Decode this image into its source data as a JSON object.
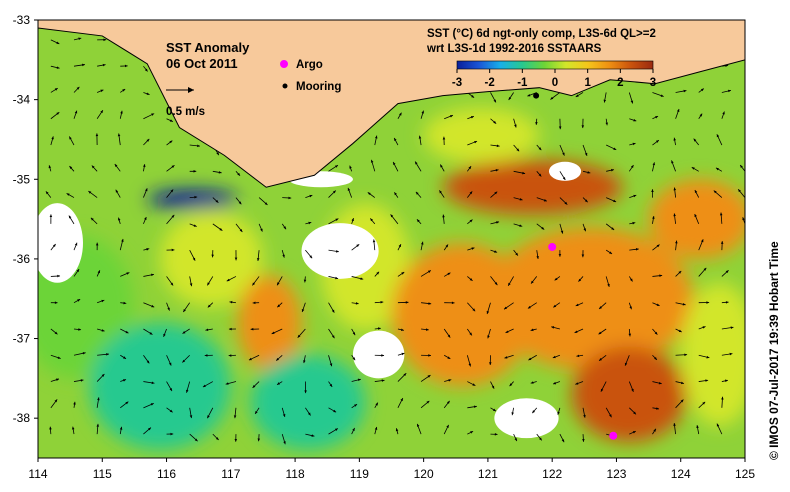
{
  "chart_data": {
    "type": "map",
    "title": "SST Anomaly",
    "date": "06 Oct 2011",
    "subtitle_line1": "SST (°C) 6d ngt-only comp, L3S-6d QL>=2",
    "subtitle_line2": "wrt L3S-1d 1992-2016 SSTAARS",
    "colorbar": {
      "min": -3,
      "max": 3,
      "ticks": [
        "-3",
        "-2",
        "-1",
        "0",
        "1",
        "2",
        "3"
      ],
      "colors": [
        "#0a1f9a",
        "#1a55d6",
        "#19b0e8",
        "#27c98f",
        "#6cd437",
        "#d2e62a",
        "#f5c61b",
        "#ee8f12",
        "#c9520d",
        "#9a2a10"
      ]
    },
    "xaxis": {
      "min": 114,
      "max": 125,
      "ticks": [
        "114",
        "115",
        "116",
        "117",
        "118",
        "119",
        "120",
        "121",
        "122",
        "123",
        "124",
        "125"
      ]
    },
    "yaxis": {
      "min": -38.5,
      "max": -33,
      "ticks": [
        "-33",
        "-34",
        "-35",
        "-36",
        "-37",
        "-38"
      ]
    },
    "markers": [
      {
        "label": "Argo",
        "lon": 122.0,
        "lat": -35.85,
        "color": "#ff00ff"
      },
      {
        "label": "Argo",
        "lon": 122.95,
        "lat": -38.22,
        "color": "#ff00ff"
      },
      {
        "label": "Mooring",
        "lon": 121.75,
        "lat": -33.95,
        "color": "#000000"
      }
    ],
    "legend": {
      "argo": "Argo",
      "mooring": "Mooring",
      "vector_scale": "0.5 m/s"
    },
    "credit": "© IMOS 07-Jul-2017 19:39 Hobart Time",
    "land_color": "#f7c99b",
    "coast": [
      [
        114,
        -33
      ],
      [
        114,
        -33.1
      ],
      [
        115,
        -33.2
      ],
      [
        115.7,
        -33.55
      ],
      [
        116.2,
        -34.35
      ],
      [
        116.9,
        -34.7
      ],
      [
        117.55,
        -35.1
      ],
      [
        118.3,
        -34.95
      ],
      [
        118.9,
        -34.55
      ],
      [
        119.6,
        -34.05
      ],
      [
        120.3,
        -33.95
      ],
      [
        121.0,
        -33.9
      ],
      [
        121.8,
        -33.85
      ],
      [
        122.3,
        -33.95
      ],
      [
        122.9,
        -33.75
      ],
      [
        123.6,
        -33.8
      ],
      [
        124.3,
        -33.65
      ],
      [
        125,
        -33.5
      ],
      [
        125,
        -33
      ]
    ],
    "anomaly_blobs": [
      {
        "lon": 114.6,
        "lat": -36.6,
        "rlon": 0.9,
        "rlat": 0.9,
        "value": -0.4
      },
      {
        "lon": 115.9,
        "lat": -37.6,
        "rlon": 1.1,
        "rlat": 0.8,
        "value": -0.8
      },
      {
        "lon": 116.7,
        "lat": -36.0,
        "rlon": 0.8,
        "rlat": 0.6,
        "value": 0.3
      },
      {
        "lon": 117.6,
        "lat": -36.8,
        "rlon": 0.5,
        "rlat": 0.6,
        "value": 1.6
      },
      {
        "lon": 118.2,
        "lat": -37.8,
        "rlon": 0.9,
        "rlat": 0.6,
        "value": -0.6
      },
      {
        "lon": 119.1,
        "lat": -36.1,
        "rlon": 0.7,
        "rlat": 0.8,
        "value": 0.2
      },
      {
        "lon": 120.6,
        "lat": -36.7,
        "rlon": 1.1,
        "rlat": 0.9,
        "value": 1.5
      },
      {
        "lon": 121.7,
        "lat": -35.1,
        "rlon": 1.4,
        "rlat": 0.35,
        "value": 2.2
      },
      {
        "lon": 122.6,
        "lat": -36.5,
        "rlon": 1.6,
        "rlat": 0.9,
        "value": 1.6
      },
      {
        "lon": 123.2,
        "lat": -37.7,
        "rlon": 0.9,
        "rlat": 0.6,
        "value": 2.1
      },
      {
        "lon": 124.3,
        "lat": -35.5,
        "rlon": 0.8,
        "rlat": 0.5,
        "value": 1.2
      },
      {
        "lon": 124.6,
        "lat": -37.2,
        "rlon": 0.6,
        "rlat": 0.9,
        "value": 0.4
      },
      {
        "lon": 116.4,
        "lat": -35.25,
        "rlon": 0.7,
        "rlat": 0.12,
        "value": -2.6
      },
      {
        "lon": 120.9,
        "lat": -34.45,
        "rlon": 0.9,
        "rlat": 0.35,
        "value": 0.2
      }
    ],
    "missing_patches": [
      {
        "lon": 114.3,
        "lat": -35.8,
        "rlon": 0.4,
        "rlat": 0.5
      },
      {
        "lon": 118.7,
        "lat": -35.9,
        "rlon": 0.6,
        "rlat": 0.35
      },
      {
        "lon": 119.3,
        "lat": -37.2,
        "rlon": 0.4,
        "rlat": 0.3
      },
      {
        "lon": 121.6,
        "lat": -38.0,
        "rlon": 0.5,
        "rlat": 0.25
      },
      {
        "lon": 122.2,
        "lat": -34.9,
        "rlon": 0.25,
        "rlat": 0.12
      },
      {
        "lon": 118.4,
        "lat": -35.0,
        "rlon": 0.5,
        "rlat": 0.1
      }
    ]
  }
}
